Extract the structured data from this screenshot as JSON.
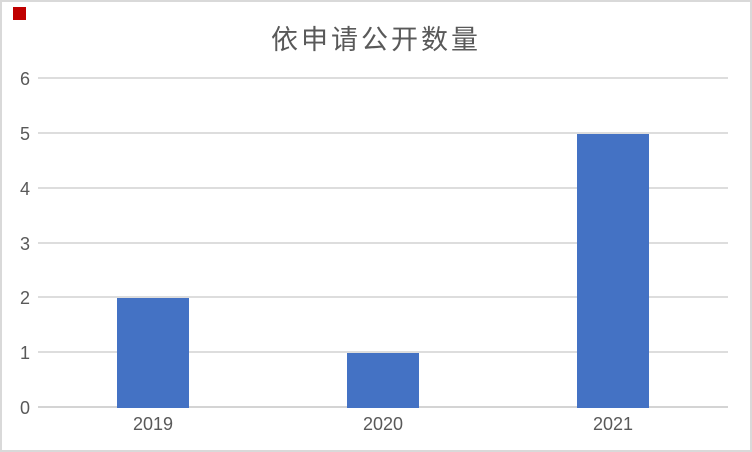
{
  "marker": {
    "color": "#c00000"
  },
  "chart_data": {
    "type": "bar",
    "title": "依申请公开数量",
    "categories": [
      "2019",
      "2020",
      "2021"
    ],
    "values": [
      2,
      1,
      5
    ],
    "xlabel": "",
    "ylabel": "",
    "ylim": [
      0,
      6
    ],
    "yticks": [
      0,
      1,
      2,
      3,
      4,
      5,
      6
    ],
    "grid": "horizontal",
    "legend": "none",
    "bar_color": "#4472c4",
    "gridline_color": "#dddddd",
    "axis_line_color": "#d4d4d4",
    "text_color": "#595959",
    "frame_border_color": "#d9d9d9",
    "background": "#ffffff"
  }
}
